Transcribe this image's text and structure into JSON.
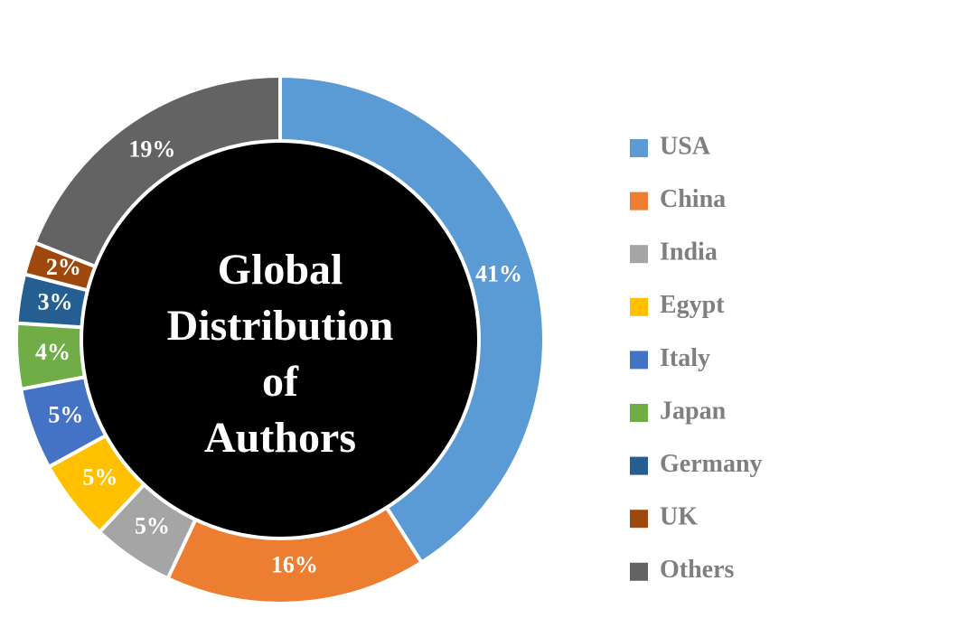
{
  "chart_data": {
    "type": "donut",
    "title": "Global Distribution of Authors",
    "categories": [
      "USA",
      "China",
      "India",
      "Egypt",
      "Italy",
      "Japan",
      "Germany",
      "UK",
      "Others"
    ],
    "values": [
      41,
      16,
      5,
      5,
      5,
      4,
      3,
      2,
      19
    ],
    "value_labels": [
      "41%",
      "16%",
      "5%",
      "5%",
      "5%",
      "4%",
      "3%",
      "2%",
      "19%"
    ],
    "colors": [
      "#5b9bd5",
      "#ed7d31",
      "#a5a5a5",
      "#ffc000",
      "#4472c4",
      "#70ad47",
      "#255e91",
      "#9e480e",
      "#636363"
    ],
    "legend": "right"
  }
}
